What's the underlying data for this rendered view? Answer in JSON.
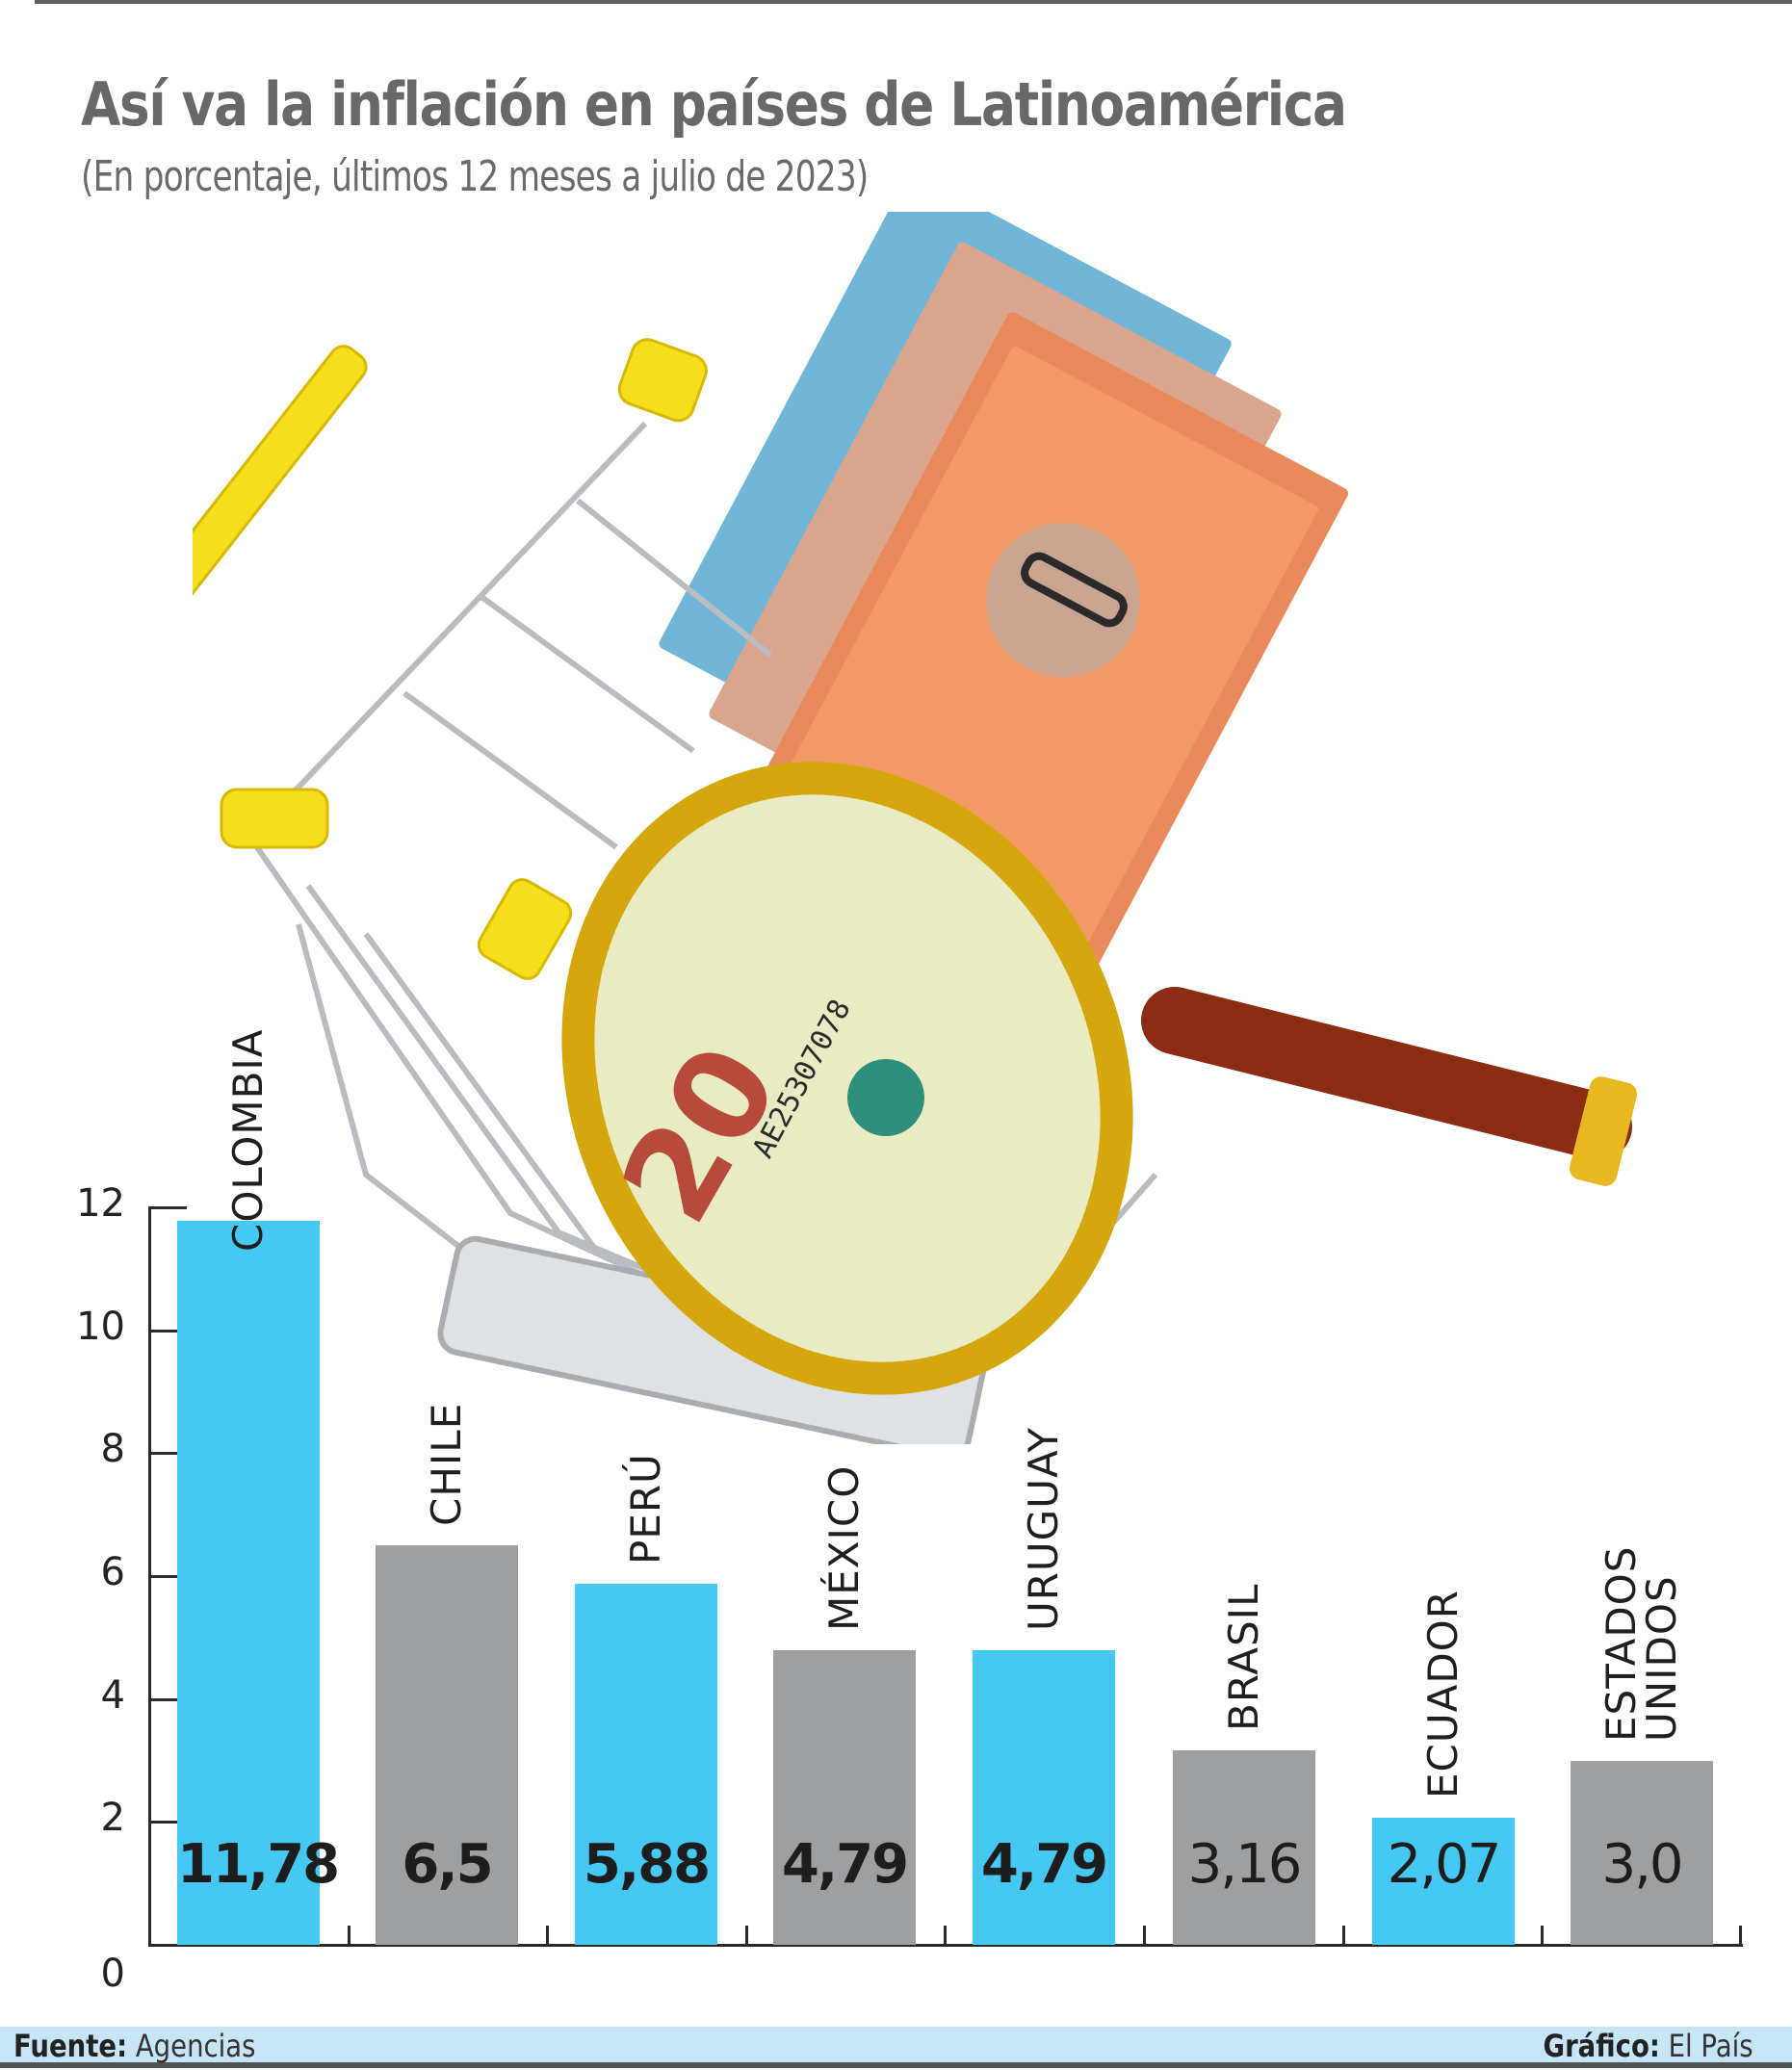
{
  "header": {
    "title": "Así va la inflación en países de Latinoamérica",
    "subtitle": "(En porcentaje, últimos 12 meses a julio de 2023)"
  },
  "illustration": {
    "description": "Shopping cart with yellow handle holding Colombian peso banknotes, magnifying glass with wooden handle over a 20 mil pesos note",
    "banknote_serial": "AE25307078"
  },
  "colors": {
    "highlight": "#45c8f2",
    "neutral": "#9e9fa1",
    "footer_bg": "#c6e6f7",
    "title": "#686868"
  },
  "footer": {
    "source_label": "Fuente:",
    "source_value": "Agencias",
    "credit_label": "Gráfico:",
    "credit_value": "El País"
  },
  "chart_data": {
    "type": "bar",
    "title": "Así va la inflación en países de Latinoamérica",
    "subtitle": "(En porcentaje, últimos 12 meses a julio de 2023)",
    "xlabel": "",
    "ylabel": "",
    "ylim": [
      0,
      12
    ],
    "yticks": [
      "0",
      "2",
      "4",
      "6",
      "8",
      "10",
      "12"
    ],
    "grid": false,
    "legend": null,
    "categories": [
      "COLOMBIA",
      "CHILE",
      "PERÚ",
      "MÉXICO",
      "URUGUAY",
      "BRASIL",
      "ECUADOR",
      "ESTADOS UNIDOS"
    ],
    "values": [
      11.78,
      6.5,
      5.88,
      4.79,
      4.79,
      3.16,
      2.07,
      3.0
    ],
    "value_labels": [
      "11,78",
      "6,5",
      "5,88",
      "4,79",
      "4,79",
      "3,16",
      "2,07",
      "3,0"
    ],
    "bar_colors": [
      "blue",
      "gray",
      "blue",
      "gray",
      "blue",
      "gray",
      "blue",
      "gray"
    ],
    "label_lines": [
      [
        "COLOMBIA"
      ],
      [
        "CHILE"
      ],
      [
        "PERÚ"
      ],
      [
        "MÉXICO"
      ],
      [
        "URUGUAY"
      ],
      [
        "BRASIL"
      ],
      [
        "ECUADOR"
      ],
      [
        "ESTADOS",
        "UNIDOS"
      ]
    ]
  }
}
